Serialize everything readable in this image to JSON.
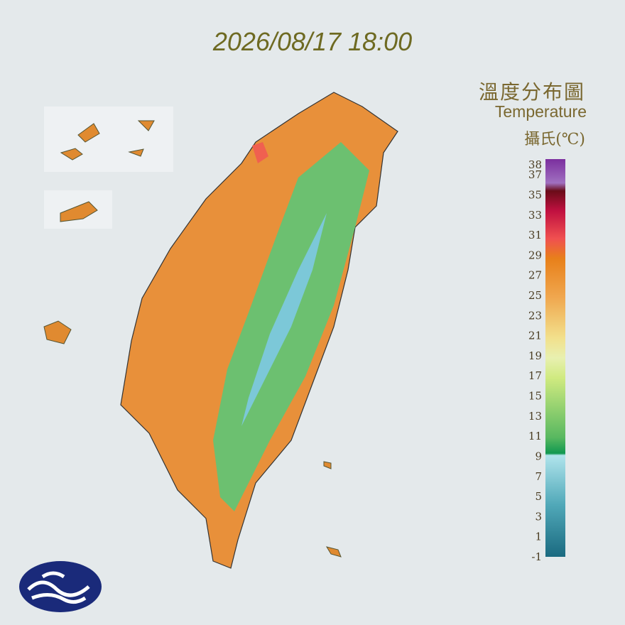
{
  "timestamp": "2026/08/17 18:00",
  "title": "溫度分布圖",
  "subtitle": "Temperature",
  "unit": "攝氏(℃)",
  "legend": {
    "labels": [
      38,
      37,
      35,
      33,
      31,
      29,
      27,
      25,
      23,
      21,
      19,
      17,
      15,
      13,
      11,
      9,
      7,
      5,
      3,
      1,
      -1
    ]
  }
}
